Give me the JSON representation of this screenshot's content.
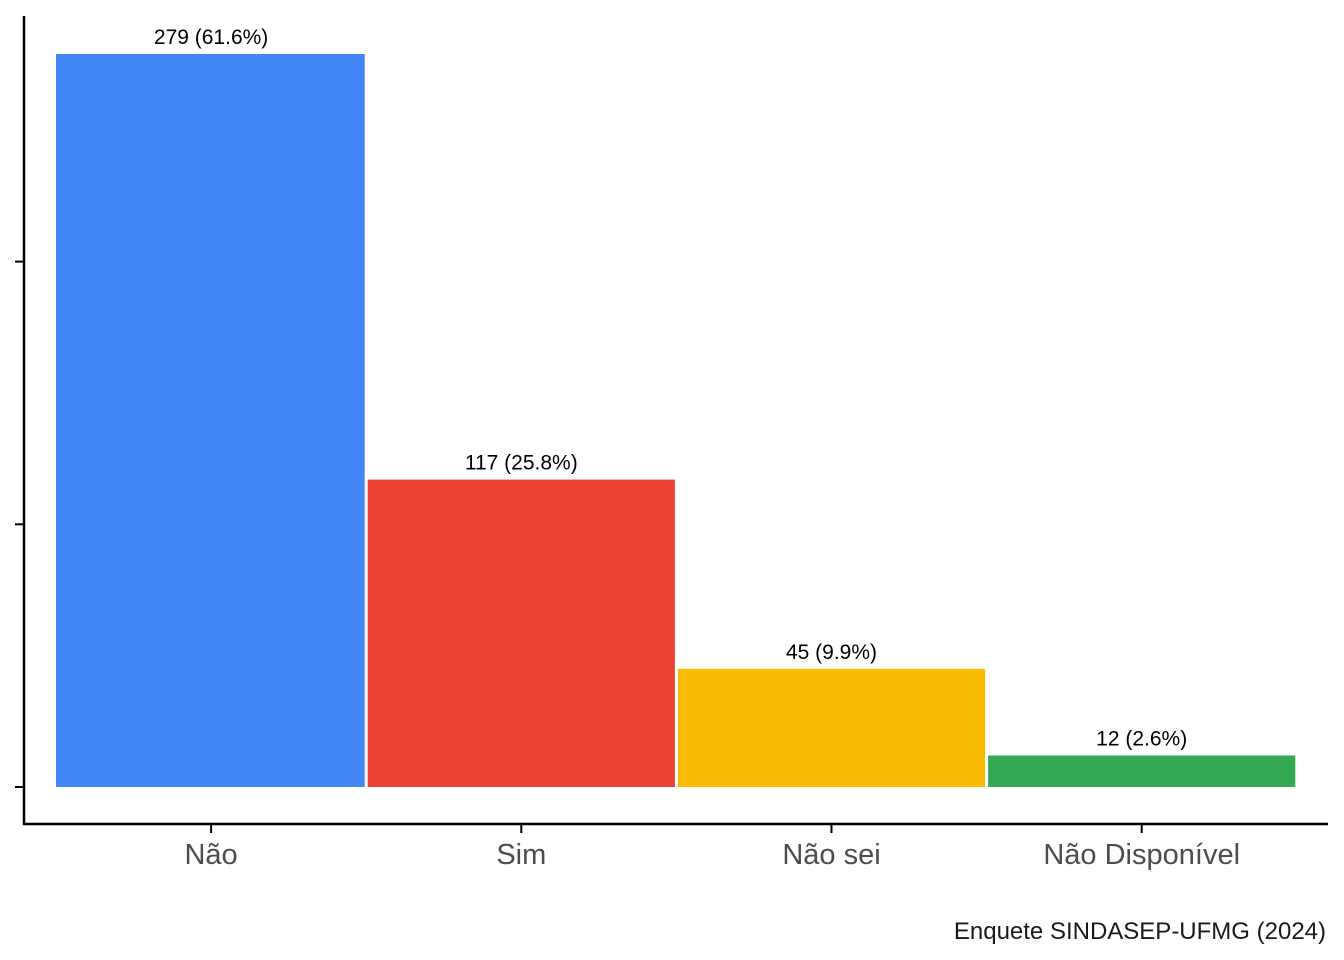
{
  "chart_data": {
    "type": "bar",
    "categories": [
      "Não",
      "Sim",
      "Não sei",
      "Não Disponível"
    ],
    "values": [
      279,
      117,
      45,
      12
    ],
    "data_labels": [
      "279 (61.6%)",
      "117 (25.8%)",
      "45 (9.9%)",
      "12 (2.6%)"
    ],
    "colors": [
      "#4285F4",
      "#EA4335",
      "#FBBC05",
      "#34A853"
    ],
    "caption": "Enquete SINDASEP-UFMG (2024)",
    "ylim": [
      0,
      279
    ],
    "y_ticks": [
      0,
      100,
      200
    ],
    "y_tick_labels_visible": false,
    "grid": false,
    "legend": "none"
  }
}
